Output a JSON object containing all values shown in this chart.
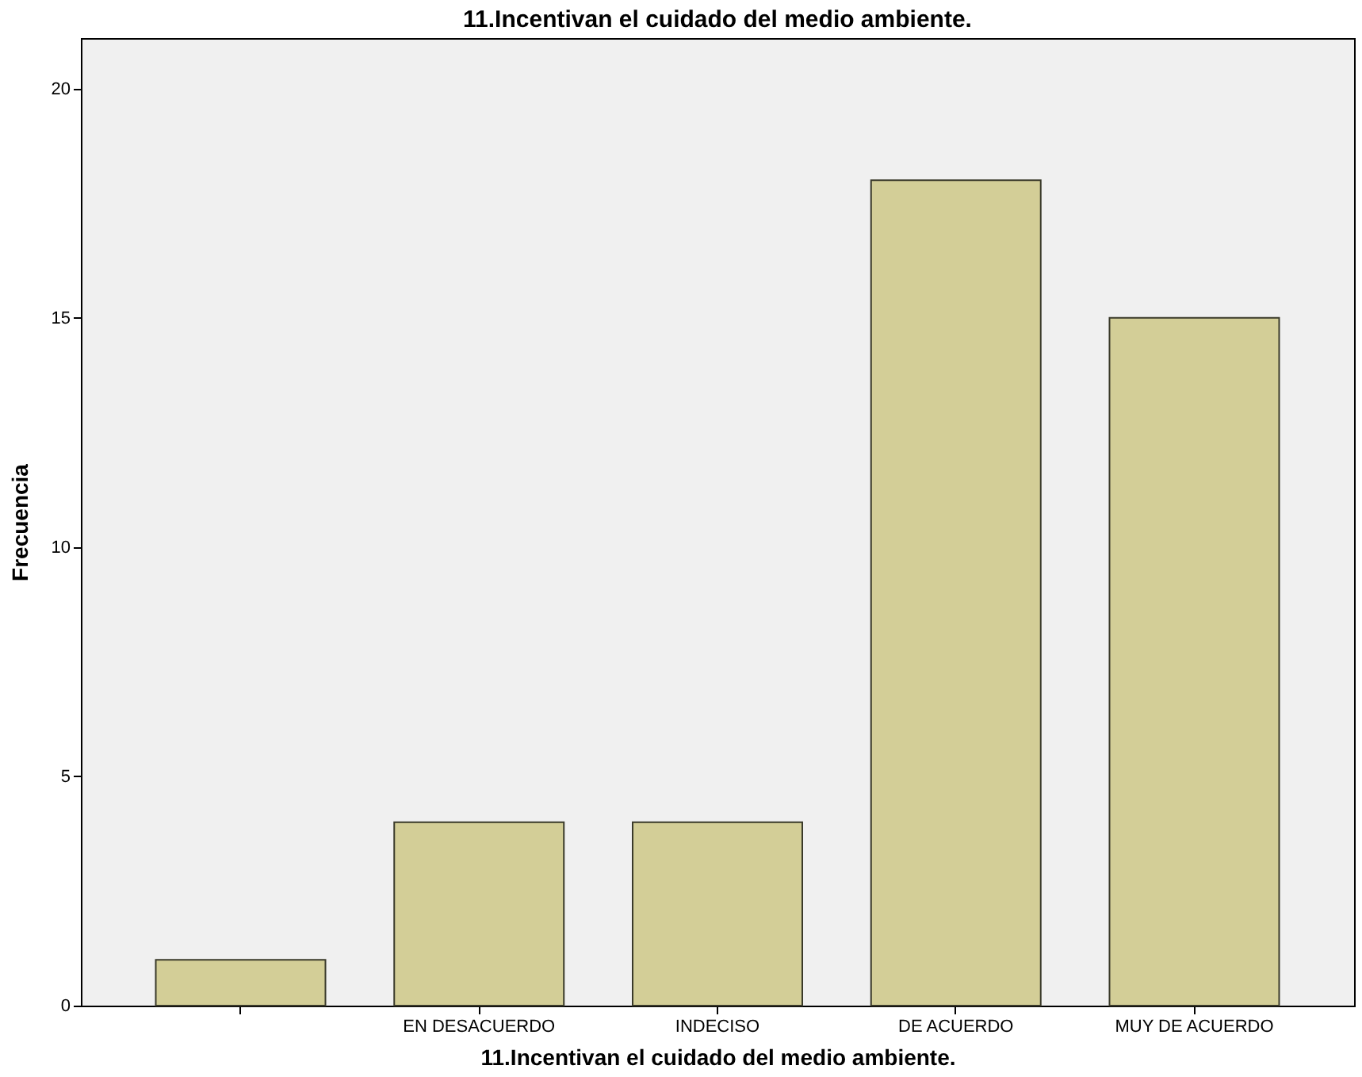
{
  "chart_data": {
    "type": "bar",
    "title": "11.Incentivan el cuidado del medio ambiente.",
    "xlabel": "11.Incentivan el cuidado del medio ambiente.",
    "ylabel": "Frecuencia",
    "categories": [
      null,
      "EN DESACUERDO",
      "INDECISO",
      "DE ACUERDO",
      "MUY DE ACUERDO"
    ],
    "values": [
      1,
      4,
      4,
      18,
      15
    ],
    "color": "#d3ce97",
    "ylim": [
      0,
      21.1
    ],
    "yticks": [
      0,
      5,
      10,
      15,
      20
    ],
    "grid": false
  }
}
